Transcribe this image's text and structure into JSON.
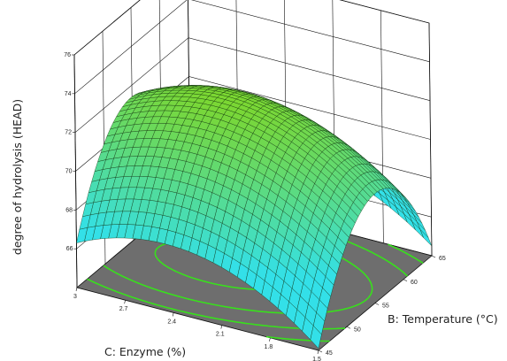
{
  "chart_data": {
    "type": "surface3d",
    "title": "",
    "zlabel": "degree of hydrolysis (HEAD)",
    "xlabel": "B: Temperature (°C)",
    "ylabel": "C: Enzyme (%)",
    "z_ticks": [
      "66",
      "68",
      "70",
      "72",
      "74",
      "76"
    ],
    "z_range": [
      64,
      76
    ],
    "x_ticks": [
      "45",
      "50",
      "55",
      "60",
      "65"
    ],
    "x_range": [
      45,
      65
    ],
    "y_ticks": [
      "1.5",
      "1.8",
      "2.1",
      "2.4",
      "2.7",
      "3"
    ],
    "y_range": [
      1.5,
      3
    ],
    "surface_grid": {
      "temperature": [
        45,
        47.5,
        50,
        52.5,
        55,
        57.5,
        60,
        62.5,
        65
      ],
      "enzyme": [
        1.5,
        1.8,
        2.1,
        2.4,
        2.7,
        3.0
      ],
      "z": [
        [
          66.9,
          68.5,
          69.7,
          70.5,
          70.7,
          70.5,
          69.7,
          68.5,
          66.9
        ],
        [
          68.2,
          69.8,
          71.0,
          71.8,
          72.0,
          71.8,
          71.0,
          69.8,
          68.2
        ],
        [
          68.9,
          70.5,
          71.7,
          72.5,
          72.7,
          72.5,
          71.7,
          70.5,
          68.9
        ],
        [
          69.1,
          70.7,
          71.9,
          72.7,
          72.9,
          72.7,
          71.9,
          70.7,
          69.1
        ],
        [
          68.7,
          70.3,
          71.5,
          72.3,
          72.5,
          72.3,
          71.5,
          70.3,
          68.7
        ],
        [
          67.7,
          69.3,
          70.5,
          71.3,
          71.5,
          71.3,
          70.5,
          69.3,
          67.7
        ]
      ]
    },
    "floor_contours": true,
    "grid": true,
    "colors": {
      "surface_high": "#7fd628",
      "surface_low": "#33e0e8",
      "floor": "#6e6e6e",
      "contour": "#38e01c"
    }
  }
}
